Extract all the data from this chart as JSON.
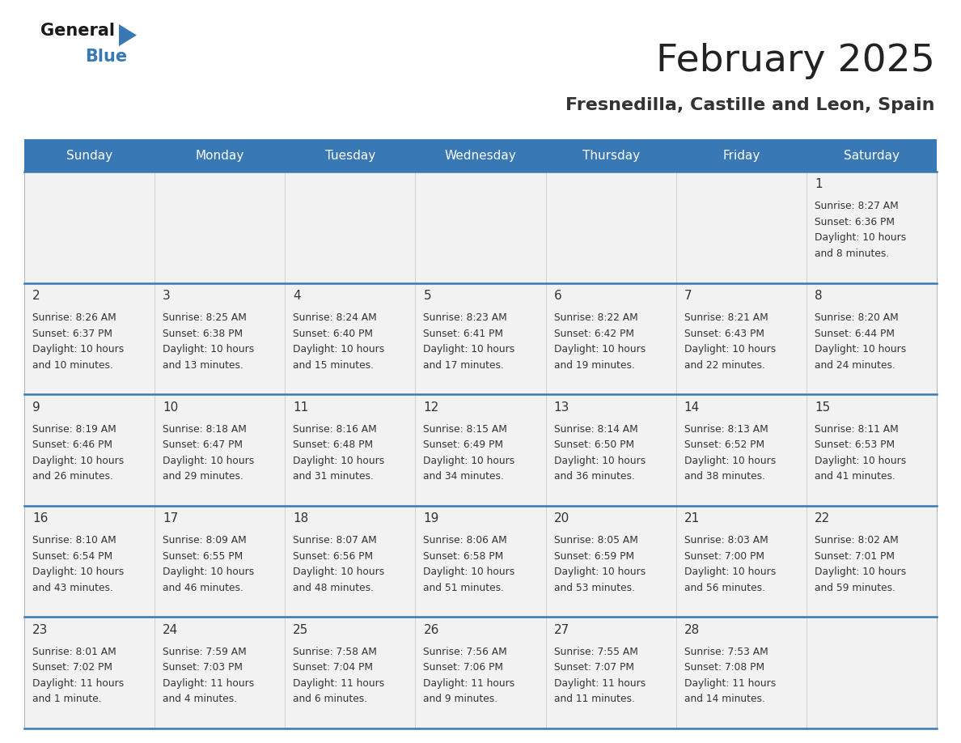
{
  "title": "February 2025",
  "subtitle": "Fresnedilla, Castille and Leon, Spain",
  "days_of_week": [
    "Sunday",
    "Monday",
    "Tuesday",
    "Wednesday",
    "Thursday",
    "Friday",
    "Saturday"
  ],
  "header_bg": "#3878b4",
  "header_text": "#ffffff",
  "cell_bg": "#f2f2f2",
  "line_color": "#3878b4",
  "text_color": "#333333",
  "calendar_data": [
    [
      null,
      null,
      null,
      null,
      null,
      null,
      {
        "day": 1,
        "sunrise": "8:27 AM",
        "sunset": "6:36 PM",
        "daylight": "10 hours and 8 minutes"
      }
    ],
    [
      {
        "day": 2,
        "sunrise": "8:26 AM",
        "sunset": "6:37 PM",
        "daylight": "10 hours and 10 minutes"
      },
      {
        "day": 3,
        "sunrise": "8:25 AM",
        "sunset": "6:38 PM",
        "daylight": "10 hours and 13 minutes"
      },
      {
        "day": 4,
        "sunrise": "8:24 AM",
        "sunset": "6:40 PM",
        "daylight": "10 hours and 15 minutes"
      },
      {
        "day": 5,
        "sunrise": "8:23 AM",
        "sunset": "6:41 PM",
        "daylight": "10 hours and 17 minutes"
      },
      {
        "day": 6,
        "sunrise": "8:22 AM",
        "sunset": "6:42 PM",
        "daylight": "10 hours and 19 minutes"
      },
      {
        "day": 7,
        "sunrise": "8:21 AM",
        "sunset": "6:43 PM",
        "daylight": "10 hours and 22 minutes"
      },
      {
        "day": 8,
        "sunrise": "8:20 AM",
        "sunset": "6:44 PM",
        "daylight": "10 hours and 24 minutes"
      }
    ],
    [
      {
        "day": 9,
        "sunrise": "8:19 AM",
        "sunset": "6:46 PM",
        "daylight": "10 hours and 26 minutes"
      },
      {
        "day": 10,
        "sunrise": "8:18 AM",
        "sunset": "6:47 PM",
        "daylight": "10 hours and 29 minutes"
      },
      {
        "day": 11,
        "sunrise": "8:16 AM",
        "sunset": "6:48 PM",
        "daylight": "10 hours and 31 minutes"
      },
      {
        "day": 12,
        "sunrise": "8:15 AM",
        "sunset": "6:49 PM",
        "daylight": "10 hours and 34 minutes"
      },
      {
        "day": 13,
        "sunrise": "8:14 AM",
        "sunset": "6:50 PM",
        "daylight": "10 hours and 36 minutes"
      },
      {
        "day": 14,
        "sunrise": "8:13 AM",
        "sunset": "6:52 PM",
        "daylight": "10 hours and 38 minutes"
      },
      {
        "day": 15,
        "sunrise": "8:11 AM",
        "sunset": "6:53 PM",
        "daylight": "10 hours and 41 minutes"
      }
    ],
    [
      {
        "day": 16,
        "sunrise": "8:10 AM",
        "sunset": "6:54 PM",
        "daylight": "10 hours and 43 minutes"
      },
      {
        "day": 17,
        "sunrise": "8:09 AM",
        "sunset": "6:55 PM",
        "daylight": "10 hours and 46 minutes"
      },
      {
        "day": 18,
        "sunrise": "8:07 AM",
        "sunset": "6:56 PM",
        "daylight": "10 hours and 48 minutes"
      },
      {
        "day": 19,
        "sunrise": "8:06 AM",
        "sunset": "6:58 PM",
        "daylight": "10 hours and 51 minutes"
      },
      {
        "day": 20,
        "sunrise": "8:05 AM",
        "sunset": "6:59 PM",
        "daylight": "10 hours and 53 minutes"
      },
      {
        "day": 21,
        "sunrise": "8:03 AM",
        "sunset": "7:00 PM",
        "daylight": "10 hours and 56 minutes"
      },
      {
        "day": 22,
        "sunrise": "8:02 AM",
        "sunset": "7:01 PM",
        "daylight": "10 hours and 59 minutes"
      }
    ],
    [
      {
        "day": 23,
        "sunrise": "8:01 AM",
        "sunset": "7:02 PM",
        "daylight": "11 hours and 1 minute"
      },
      {
        "day": 24,
        "sunrise": "7:59 AM",
        "sunset": "7:03 PM",
        "daylight": "11 hours and 4 minutes"
      },
      {
        "day": 25,
        "sunrise": "7:58 AM",
        "sunset": "7:04 PM",
        "daylight": "11 hours and 6 minutes"
      },
      {
        "day": 26,
        "sunrise": "7:56 AM",
        "sunset": "7:06 PM",
        "daylight": "11 hours and 9 minutes"
      },
      {
        "day": 27,
        "sunrise": "7:55 AM",
        "sunset": "7:07 PM",
        "daylight": "11 hours and 11 minutes"
      },
      {
        "day": 28,
        "sunrise": "7:53 AM",
        "sunset": "7:08 PM",
        "daylight": "11 hours and 14 minutes"
      },
      null
    ]
  ]
}
